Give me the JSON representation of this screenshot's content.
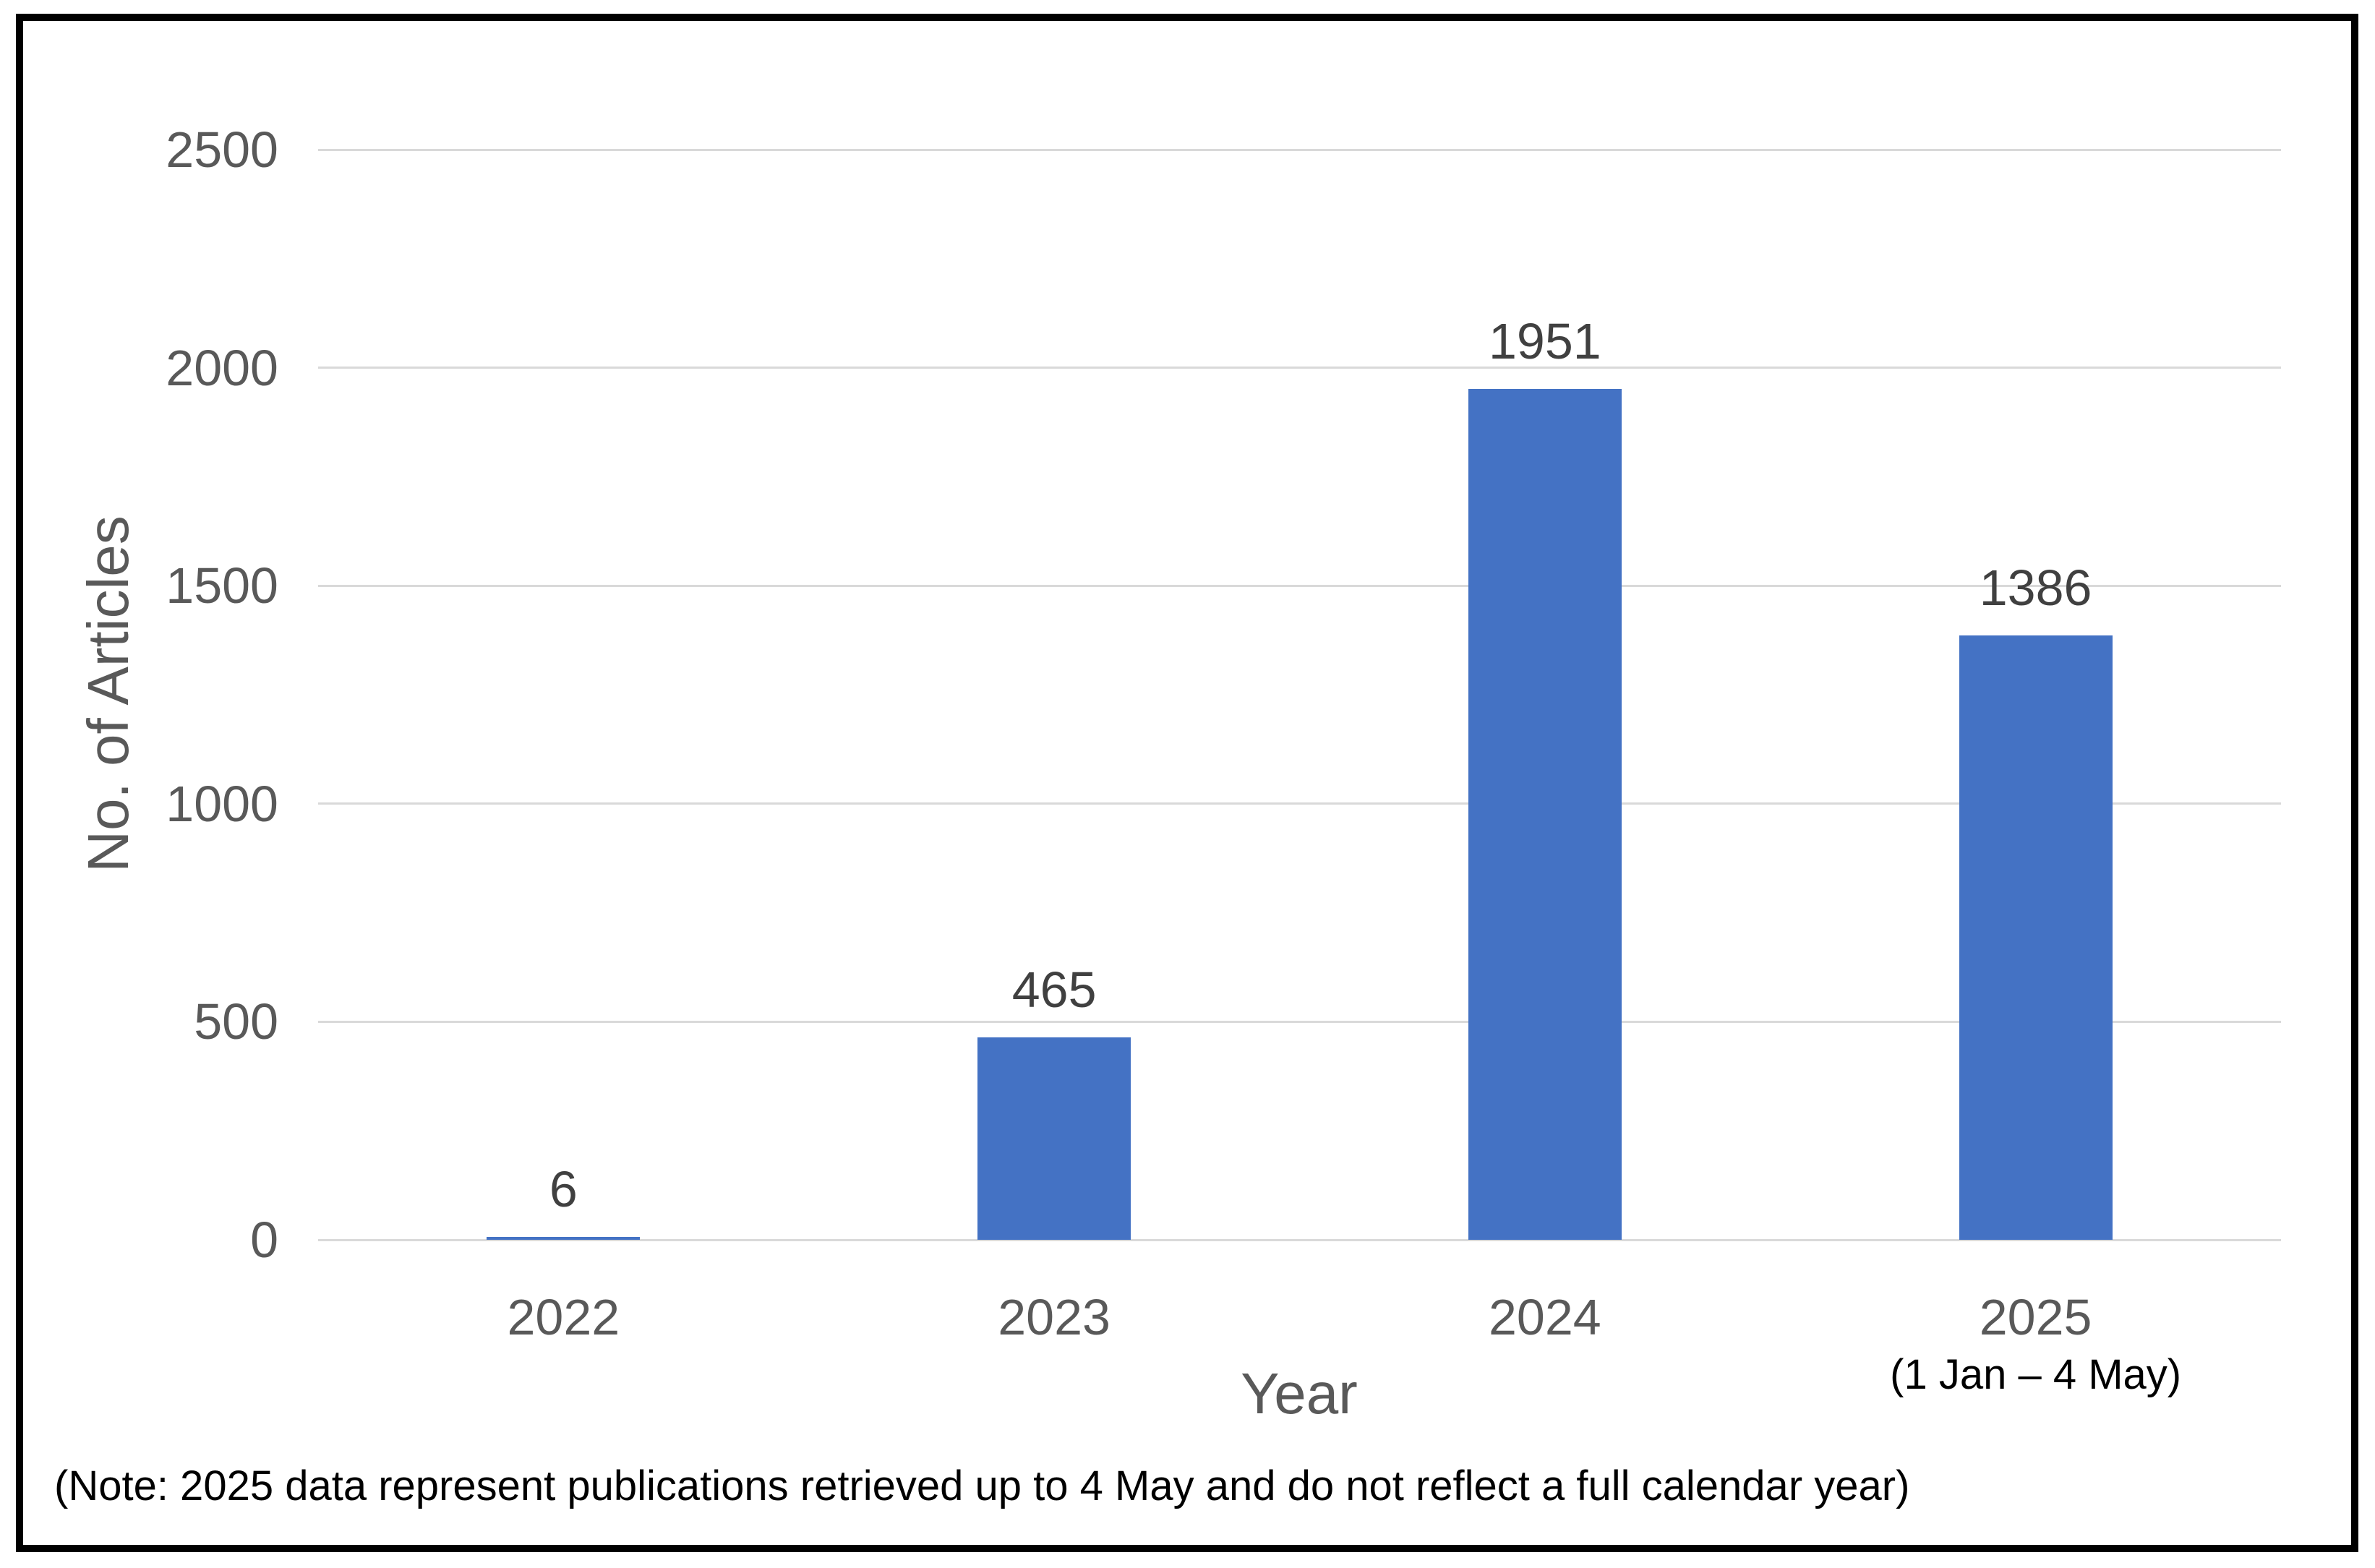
{
  "chart_data": {
    "type": "bar",
    "categories": [
      "2022",
      "2023",
      "2024",
      "2025"
    ],
    "category_sublabels": [
      "",
      "",
      "",
      "(1 Jan – 4 May)"
    ],
    "values": [
      6,
      465,
      1951,
      1386
    ],
    "title": "",
    "xlabel": "Year",
    "ylabel": "No. of Articles",
    "ylim": [
      0,
      2500
    ],
    "yticks": [
      0,
      500,
      1000,
      1500,
      2000,
      2500
    ],
    "grid": true,
    "legend": "none",
    "bar_color": "#4472C4",
    "gridline_color": "#d9d9d9",
    "tick_label_color": "#595959",
    "data_label_color": "#404040",
    "note": "(Note: 2025 data represent publications retrieved up to 4 May and do not reflect a full calendar year)"
  }
}
